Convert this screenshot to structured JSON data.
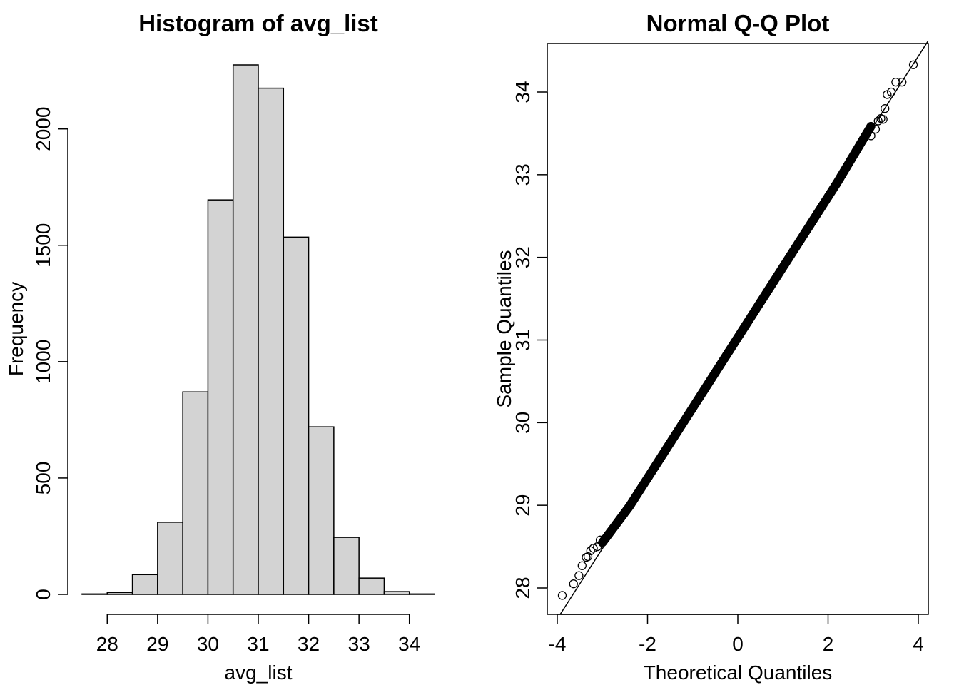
{
  "chart_data": [
    {
      "type": "bar",
      "title": "Histogram of avg_list",
      "xlabel": "avg_list",
      "ylabel": "Frequency",
      "bin_width": 0.5,
      "bins": [
        {
          "x0": 27.5,
          "x1": 28.0,
          "count": 2
        },
        {
          "x0": 28.0,
          "x1": 28.5,
          "count": 8
        },
        {
          "x0": 28.5,
          "x1": 29.0,
          "count": 85
        },
        {
          "x0": 29.0,
          "x1": 29.5,
          "count": 310
        },
        {
          "x0": 29.5,
          "x1": 30.0,
          "count": 870
        },
        {
          "x0": 30.0,
          "x1": 30.5,
          "count": 1695
        },
        {
          "x0": 30.5,
          "x1": 31.0,
          "count": 2275
        },
        {
          "x0": 31.0,
          "x1": 31.5,
          "count": 2175
        },
        {
          "x0": 31.5,
          "x1": 32.0,
          "count": 1535
        },
        {
          "x0": 32.0,
          "x1": 32.5,
          "count": 720
        },
        {
          "x0": 32.5,
          "x1": 33.0,
          "count": 245
        },
        {
          "x0": 33.0,
          "x1": 33.5,
          "count": 70
        },
        {
          "x0": 33.5,
          "x1": 34.0,
          "count": 12
        },
        {
          "x0": 34.0,
          "x1": 34.5,
          "count": 2
        }
      ],
      "x_ticks": [
        28,
        29,
        30,
        31,
        32,
        33,
        34
      ],
      "y_ticks": [
        0,
        500,
        1000,
        1500,
        2000
      ],
      "xlim": [
        27.5,
        34.5
      ],
      "ylim": [
        0,
        2275
      ],
      "bar_color": "#d3d3d3"
    },
    {
      "type": "scatter",
      "title": "Normal Q-Q Plot",
      "xlabel": "Theoretical Quantiles",
      "ylabel": "Sample Quantiles",
      "x_ticks": [
        -4,
        -2,
        0,
        2,
        4
      ],
      "y_ticks": [
        28,
        29,
        30,
        31,
        32,
        33,
        34
      ],
      "xlim": [
        -4.12,
        4.12
      ],
      "ylim": [
        27.62,
        34.6
      ],
      "reference_line": {
        "intercept": 31.03,
        "slope": 0.851
      },
      "outlier_points": [
        {
          "x": -3.89,
          "y": 27.91
        },
        {
          "x": -3.64,
          "y": 28.05
        },
        {
          "x": -3.52,
          "y": 28.15
        },
        {
          "x": -3.45,
          "y": 28.27
        },
        {
          "x": -3.36,
          "y": 28.37
        },
        {
          "x": -3.32,
          "y": 28.38
        },
        {
          "x": -3.26,
          "y": 28.45
        },
        {
          "x": -3.2,
          "y": 28.48
        },
        {
          "x": -3.11,
          "y": 28.5
        },
        {
          "x": -3.05,
          "y": 28.58
        },
        {
          "x": 2.95,
          "y": 33.47
        },
        {
          "x": 3.05,
          "y": 33.55
        },
        {
          "x": 3.11,
          "y": 33.65
        },
        {
          "x": 3.17,
          "y": 33.68
        },
        {
          "x": 3.22,
          "y": 33.67
        },
        {
          "x": 3.26,
          "y": 33.8
        },
        {
          "x": 3.31,
          "y": 33.97
        },
        {
          "x": 3.4,
          "y": 34.0
        },
        {
          "x": 3.5,
          "y": 34.12
        },
        {
          "x": 3.64,
          "y": 34.12
        },
        {
          "x": 3.89,
          "y": 34.33
        }
      ],
      "central_band": {
        "from_x": -3.0,
        "to_x": 2.95,
        "note_from_y": 28.6,
        "note_to_y": 33.45
      }
    }
  ]
}
